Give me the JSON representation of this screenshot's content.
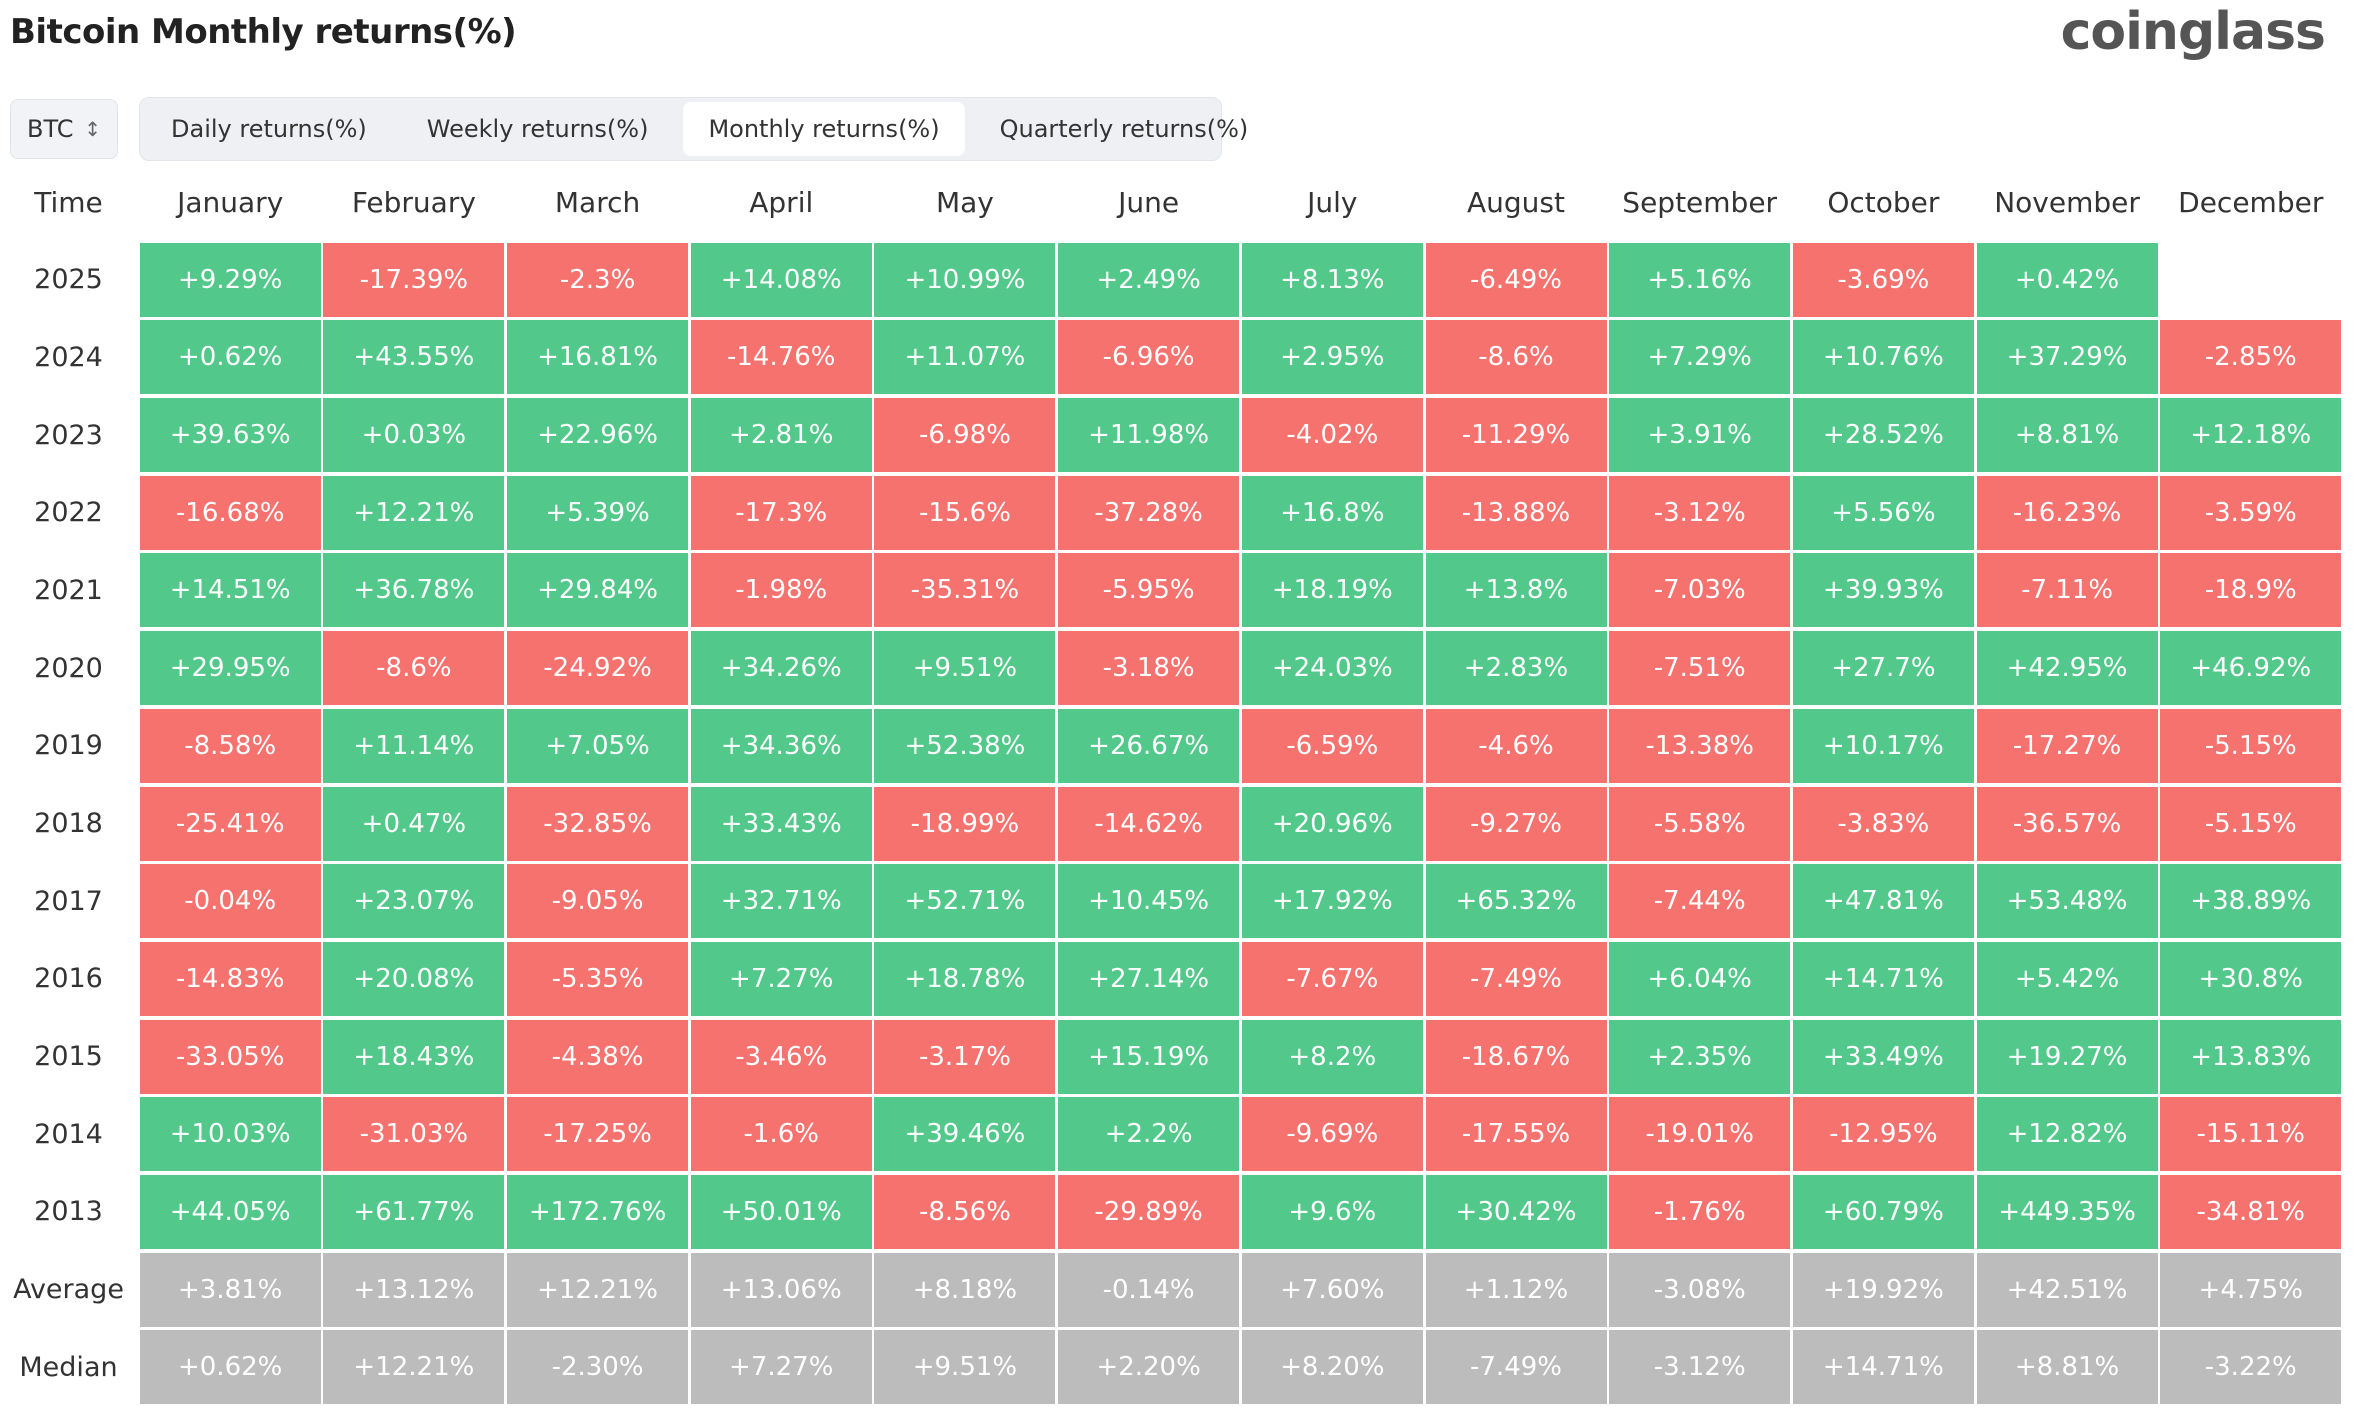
{
  "header": {
    "title": "Bitcoin Monthly returns(%)",
    "brand": "coinglass"
  },
  "controls": {
    "coin": "BTC",
    "tabs": [
      "Daily returns(%)",
      "Weekly returns(%)",
      "Monthly returns(%)",
      "Quarterly returns(%)"
    ],
    "active_tab": 2
  },
  "table": {
    "columns": [
      "Time",
      "January",
      "February",
      "March",
      "April",
      "May",
      "June",
      "July",
      "August",
      "September",
      "October",
      "November",
      "December"
    ],
    "rows": [
      [
        "2025",
        "+9.29%",
        "-17.39%",
        "-2.3%",
        "+14.08%",
        "+10.99%",
        "+2.49%",
        "+8.13%",
        "-6.49%",
        "+5.16%",
        "-3.69%",
        "+0.42%"
      ],
      [
        "2024",
        "+0.62%",
        "+43.55%",
        "+16.81%",
        "-14.76%",
        "+11.07%",
        "-6.96%",
        "+2.95%",
        "-8.6%",
        "+7.29%",
        "+10.76%",
        "+37.29%",
        "-2.85%"
      ],
      [
        "2023",
        "+39.63%",
        "+0.03%",
        "+22.96%",
        "+2.81%",
        "-6.98%",
        "+11.98%",
        "-4.02%",
        "-11.29%",
        "+3.91%",
        "+28.52%",
        "+8.81%",
        "+12.18%"
      ],
      [
        "2022",
        "-16.68%",
        "+12.21%",
        "+5.39%",
        "-17.3%",
        "-15.6%",
        "-37.28%",
        "+16.8%",
        "-13.88%",
        "-3.12%",
        "+5.56%",
        "-16.23%",
        "-3.59%"
      ],
      [
        "2021",
        "+14.51%",
        "+36.78%",
        "+29.84%",
        "-1.98%",
        "-35.31%",
        "-5.95%",
        "+18.19%",
        "+13.8%",
        "-7.03%",
        "+39.93%",
        "-7.11%",
        "-18.9%"
      ],
      [
        "2020",
        "+29.95%",
        "-8.6%",
        "-24.92%",
        "+34.26%",
        "+9.51%",
        "-3.18%",
        "+24.03%",
        "+2.83%",
        "-7.51%",
        "+27.7%",
        "+42.95%",
        "+46.92%"
      ],
      [
        "2019",
        "-8.58%",
        "+11.14%",
        "+7.05%",
        "+34.36%",
        "+52.38%",
        "+26.67%",
        "-6.59%",
        "-4.6%",
        "-13.38%",
        "+10.17%",
        "-17.27%",
        "-5.15%"
      ],
      [
        "2018",
        "-25.41%",
        "+0.47%",
        "-32.85%",
        "+33.43%",
        "-18.99%",
        "-14.62%",
        "+20.96%",
        "-9.27%",
        "-5.58%",
        "-3.83%",
        "-36.57%",
        "-5.15%"
      ],
      [
        "2017",
        "-0.04%",
        "+23.07%",
        "-9.05%",
        "+32.71%",
        "+52.71%",
        "+10.45%",
        "+17.92%",
        "+65.32%",
        "-7.44%",
        "+47.81%",
        "+53.48%",
        "+38.89%"
      ],
      [
        "2016",
        "-14.83%",
        "+20.08%",
        "-5.35%",
        "+7.27%",
        "+18.78%",
        "+27.14%",
        "-7.67%",
        "-7.49%",
        "+6.04%",
        "+14.71%",
        "+5.42%",
        "+30.8%"
      ],
      [
        "2015",
        "-33.05%",
        "+18.43%",
        "-4.38%",
        "-3.46%",
        "-3.17%",
        "+15.19%",
        "+8.2%",
        "-18.67%",
        "+2.35%",
        "+33.49%",
        "+19.27%",
        "+13.83%"
      ],
      [
        "2014",
        "+10.03%",
        "-31.03%",
        "-17.25%",
        "-1.6%",
        "+39.46%",
        "+2.2%",
        "-9.69%",
        "-17.55%",
        "-19.01%",
        "-12.95%",
        "+12.82%",
        "-15.11%"
      ],
      [
        "2013",
        "+44.05%",
        "+61.77%",
        "+172.76%",
        "+50.01%",
        "-8.56%",
        "-29.89%",
        "+9.6%",
        "+30.42%",
        "-1.76%",
        "+60.79%",
        "+449.35%",
        "-34.81%"
      ]
    ],
    "summary": [
      [
        "Average",
        "+3.81%",
        "+13.12%",
        "+12.21%",
        "+13.06%",
        "+8.18%",
        "-0.14%",
        "+7.60%",
        "+1.12%",
        "-3.08%",
        "+19.92%",
        "+42.51%",
        "+4.75%"
      ],
      [
        "Median",
        "+0.62%",
        "+12.21%",
        "-2.30%",
        "+7.27%",
        "+9.51%",
        "+2.20%",
        "+8.20%",
        "-7.49%",
        "-3.12%",
        "+14.71%",
        "+8.81%",
        "-3.22%"
      ]
    ]
  }
}
